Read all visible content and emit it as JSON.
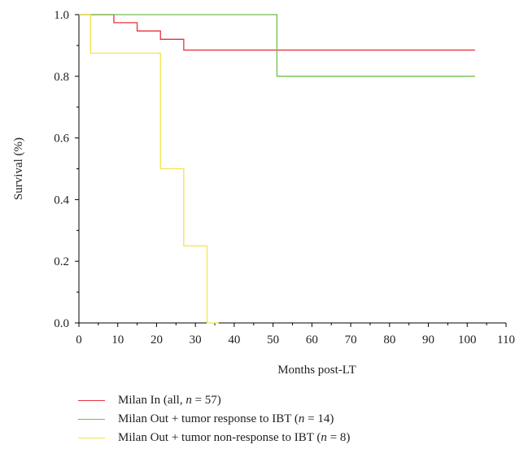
{
  "chart_data": {
    "type": "line",
    "step": true,
    "xlabel": "Months post-LT",
    "ylabel": "Survival (%)",
    "xlim": [
      0,
      110
    ],
    "ylim": [
      0,
      1.0
    ],
    "xticks": [
      0,
      10,
      20,
      30,
      40,
      50,
      60,
      70,
      80,
      90,
      100,
      110
    ],
    "yticks": [
      "0.0",
      "0.2",
      "0.4",
      "0.6",
      "0.8",
      "1.0"
    ],
    "grid": false,
    "legend_position": "bottom",
    "series": [
      {
        "name": "Milan In (all, n = 57)",
        "color": "#e8323c",
        "x": [
          0,
          9,
          15,
          21,
          27,
          102
        ],
        "y": [
          1.0,
          0.974,
          0.947,
          0.92,
          0.885,
          0.885
        ]
      },
      {
        "name": "Milan Out + tumor response to IBT (n = 14)",
        "color": "#6cc04a",
        "x": [
          0,
          51,
          102
        ],
        "y": [
          1.0,
          0.8,
          0.8
        ]
      },
      {
        "name": "Milan Out + tumor non-response to IBT (n = 8)",
        "color": "#f2e34a",
        "x": [
          0,
          3,
          21,
          27,
          33,
          36
        ],
        "y": [
          1.0,
          0.875,
          0.5,
          0.25,
          0.0,
          0.0
        ]
      }
    ]
  },
  "legend": [
    {
      "prefix": "Milan In (all, ",
      "italic": "n",
      "suffix": " = 57)"
    },
    {
      "prefix": "Milan Out + tumor response to IBT (",
      "italic": "n",
      "suffix": " = 14)"
    },
    {
      "prefix": "Milan Out + tumor non-response to IBT (",
      "italic": "n",
      "suffix": " = 8)"
    }
  ]
}
